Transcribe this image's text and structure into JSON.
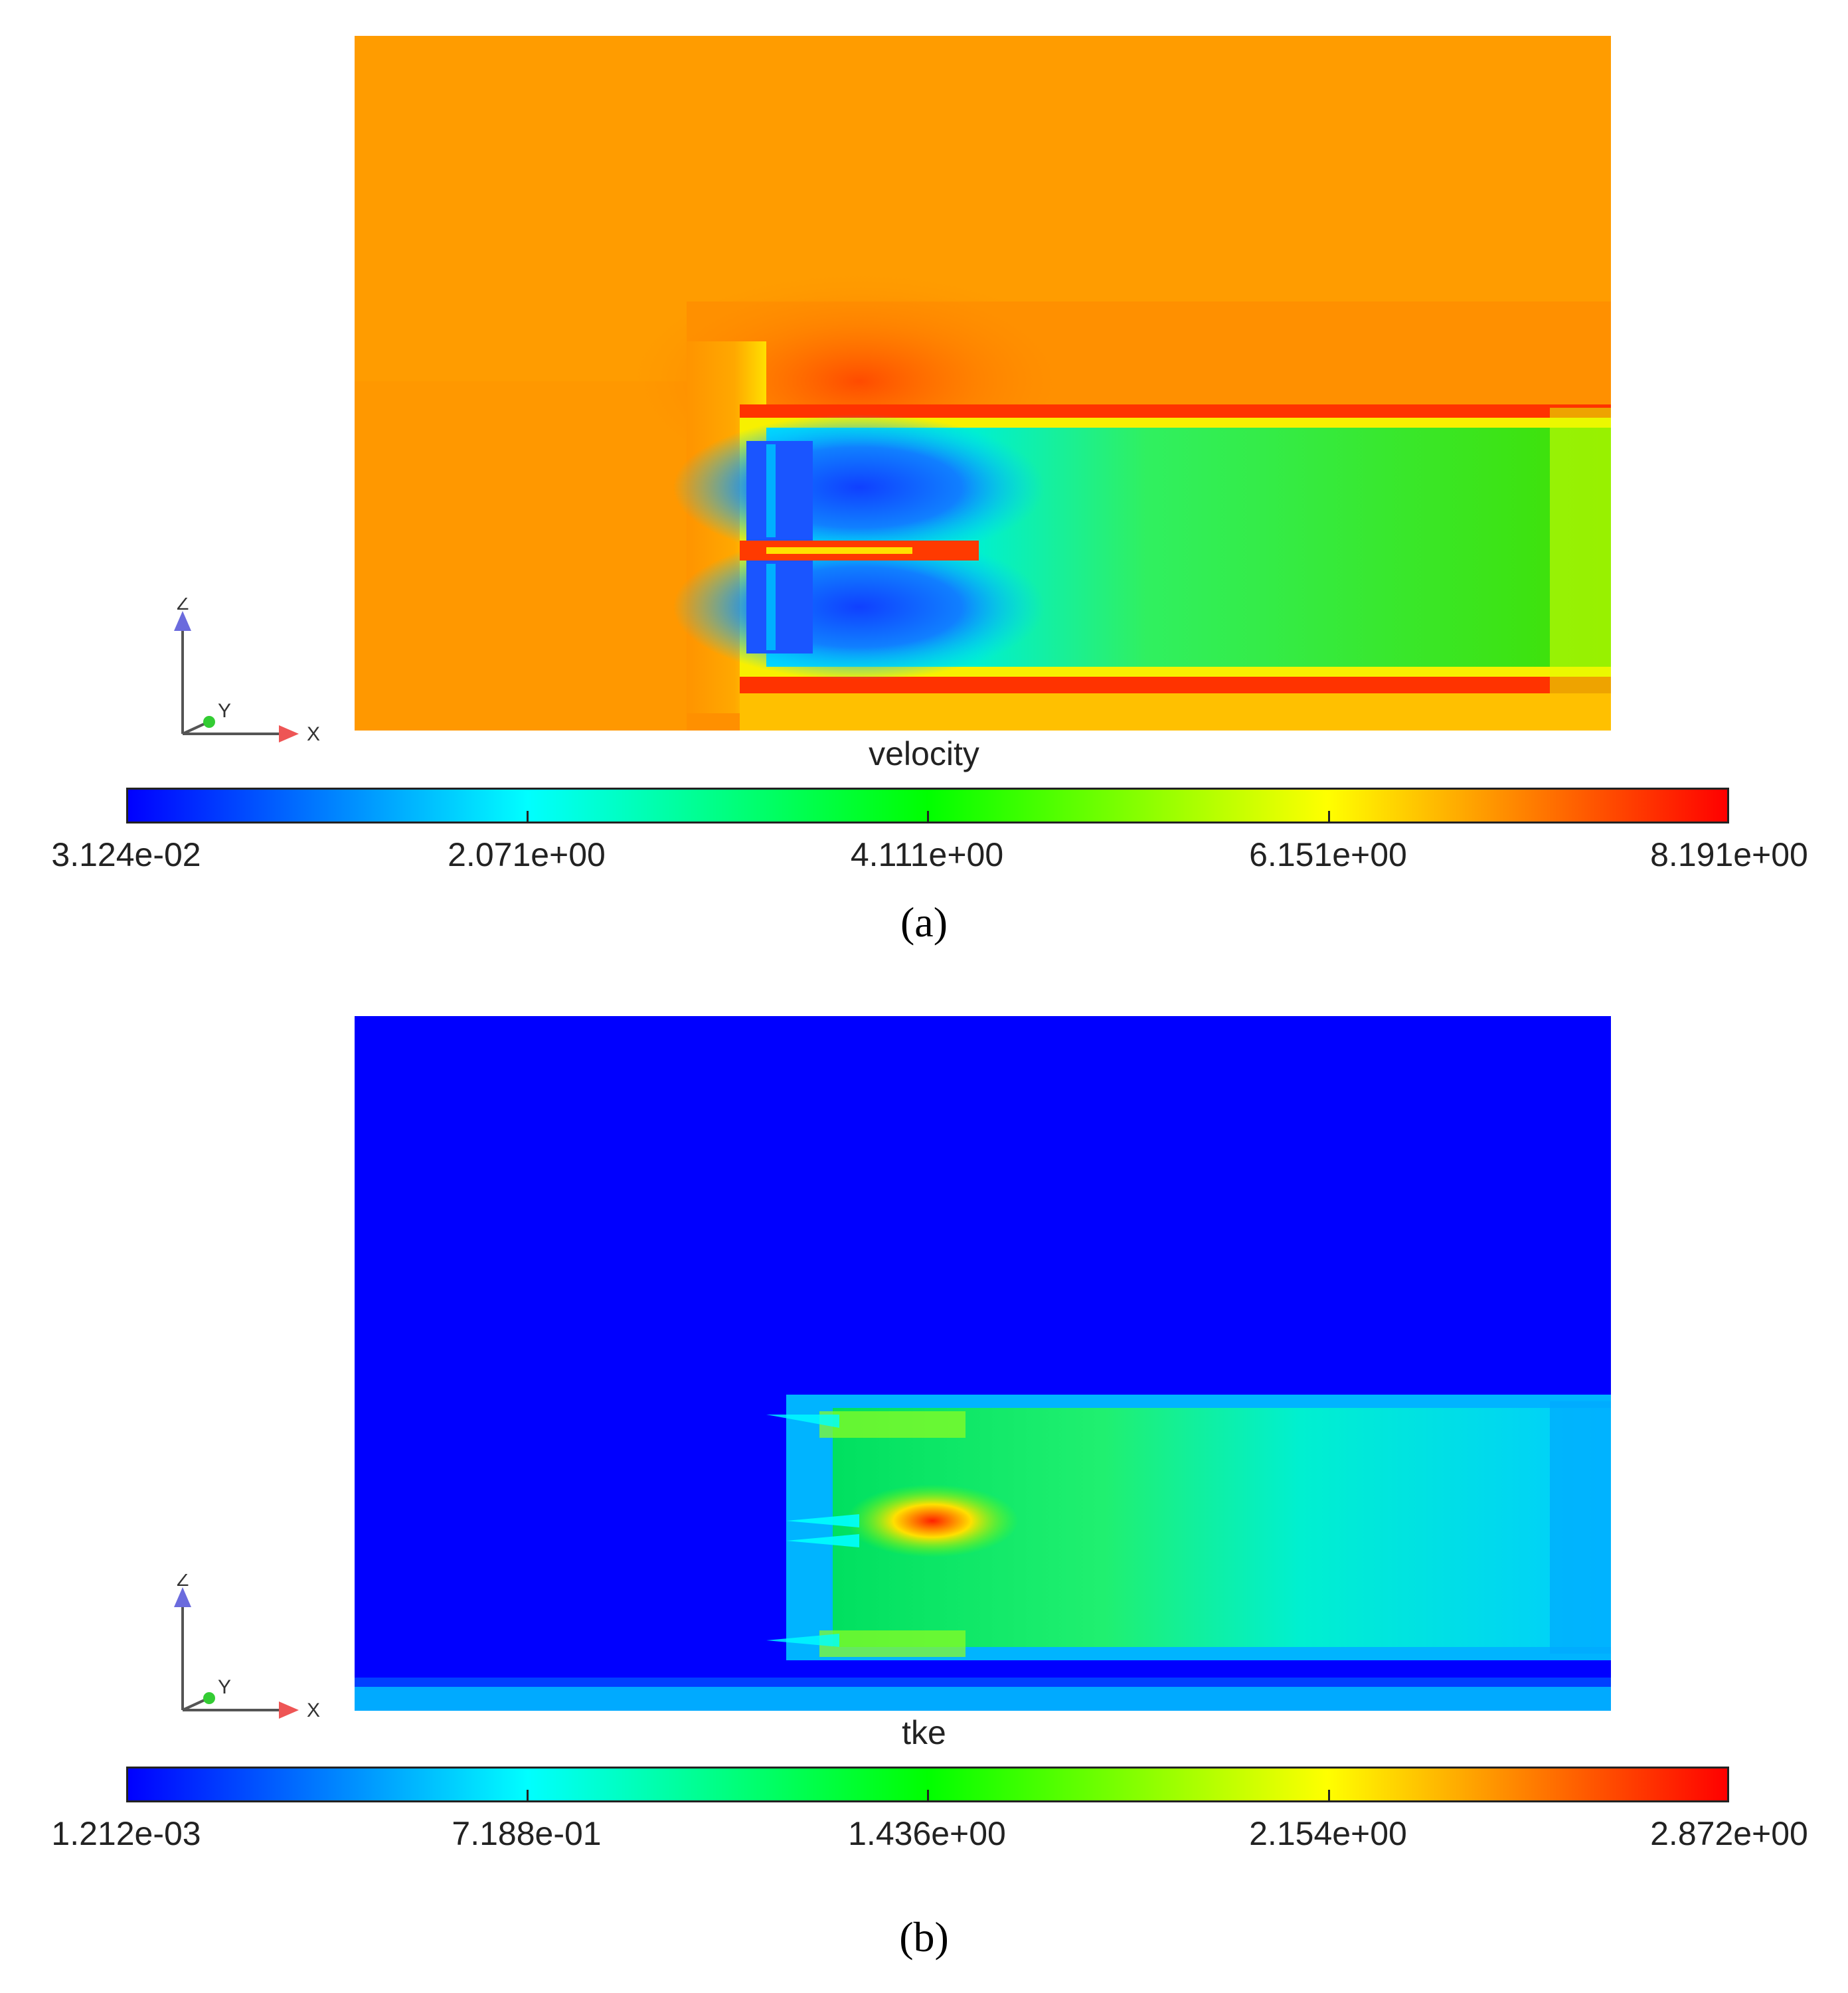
{
  "chart_data": [
    {
      "type": "heatmap",
      "panel_label": "(a)",
      "variable": "velocity",
      "colormap": [
        "#0000ff",
        "#00ffff",
        "#00ff00",
        "#ffff00",
        "#ff0000"
      ],
      "colorbar_ticks": [
        "3.124e-02",
        "2.071e+00",
        "4.111e+00",
        "6.151e+00",
        "8.191e+00"
      ],
      "range": [
        0.03124,
        8.191
      ],
      "axes": {
        "z": "Z",
        "y": "Y",
        "x": "X"
      }
    },
    {
      "type": "heatmap",
      "panel_label": "(b)",
      "variable": "tke",
      "colormap": [
        "#0000ff",
        "#00ffff",
        "#00ff00",
        "#ffff00",
        "#ff0000"
      ],
      "colorbar_ticks": [
        "1.212e-03",
        "7.188e-01",
        "1.436e+00",
        "2.154e+00",
        "2.872e+00"
      ],
      "range": [
        0.001212,
        2.872
      ],
      "axes": {
        "z": "Z",
        "y": "Y",
        "x": "X"
      }
    }
  ]
}
